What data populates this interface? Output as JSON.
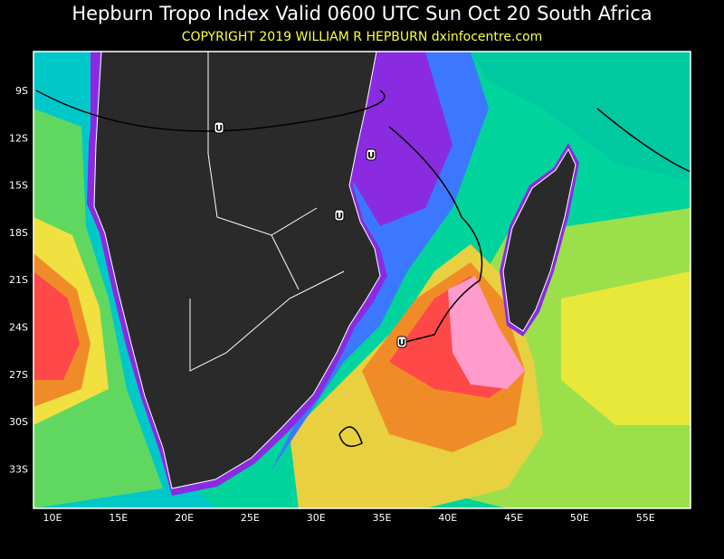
{
  "header": {
    "title": "Hepburn Tropo Index Valid 0600 UTC Sun Oct 20 South Africa",
    "copyright": "COPYRIGHT 2019  WILLIAM R HEPBURN  dxinfocentre.com"
  },
  "map": {
    "latitude_labels": [
      "9S",
      "12S",
      "15S",
      "18S",
      "21S",
      "24S",
      "27S",
      "30S",
      "33S"
    ],
    "longitude_labels": [
      "10E",
      "15E",
      "20E",
      "25E",
      "30E",
      "35E",
      "40E",
      "45E",
      "50E",
      "55E"
    ],
    "markers": [
      "U",
      "U",
      "U",
      "U"
    ]
  }
}
